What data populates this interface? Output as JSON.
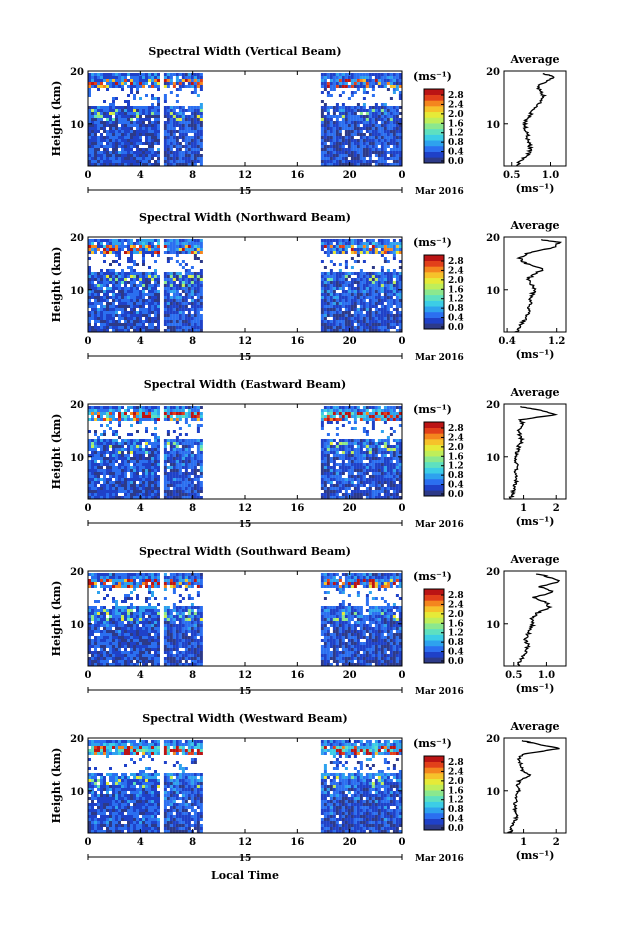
{
  "page": {
    "xlabel": "Local Time"
  },
  "colorbar": {
    "unit": "(ms⁻¹)",
    "ticks": [
      "2.8",
      "2.4",
      "2.0",
      "1.6",
      "1.2",
      "0.8",
      "0.4",
      "0.0"
    ],
    "range": [
      0.0,
      3.0
    ],
    "colors": [
      "#2d3a88",
      "#1f41c8",
      "#2b6ff0",
      "#2ea2ee",
      "#3ccde6",
      "#5ee0c0",
      "#8be88e",
      "#bfee5a",
      "#e6ea38",
      "#f6c22a",
      "#f4861e",
      "#e2401a",
      "#bb1414"
    ]
  },
  "chart_data": [
    {
      "type": "heatmap",
      "title": "Spectral Width (Vertical Beam)",
      "ylabel": "Height (km)",
      "xlim": [
        0,
        24
      ],
      "ylim": [
        2,
        20
      ],
      "xticks": [
        "0",
        "4",
        "8",
        "12",
        "16",
        "20",
        "0"
      ],
      "date_label": "15",
      "month_label": "Mar 2016",
      "data_intervals": [
        [
          0,
          5.4
        ],
        [
          5.8,
          8.6
        ],
        [
          17.8,
          24
        ]
      ],
      "profile": {
        "title": "Average",
        "xlabel": "(ms⁻¹)",
        "xticks": [
          "0.5",
          "1.0"
        ],
        "yticks": [
          "10",
          "20"
        ],
        "xlim": [
          0.4,
          1.2
        ],
        "ylim": [
          2,
          20
        ],
        "heights": [
          2,
          3,
          4,
          5,
          6,
          7,
          8,
          9,
          10,
          11,
          12,
          13,
          14,
          15,
          16,
          17,
          18,
          19,
          19.5
        ],
        "values": [
          0.55,
          0.62,
          0.7,
          0.74,
          0.73,
          0.71,
          0.7,
          0.68,
          0.67,
          0.7,
          0.75,
          0.8,
          0.86,
          0.92,
          0.88,
          0.82,
          0.95,
          1.05,
          0.9
        ]
      }
    },
    {
      "type": "heatmap",
      "title": "Spectral Width (Northward Beam)",
      "ylabel": "Height (km)",
      "xlim": [
        0,
        24
      ],
      "ylim": [
        2,
        20
      ],
      "xticks": [
        "0",
        "4",
        "8",
        "12",
        "16",
        "20",
        "0"
      ],
      "date_label": "15",
      "month_label": "Mar 2016",
      "data_intervals": [
        [
          0,
          5.4
        ],
        [
          5.8,
          8.6
        ],
        [
          17.8,
          24
        ]
      ],
      "profile": {
        "title": "Average",
        "xlabel": "(ms⁻¹)",
        "xticks": [
          "0.4",
          "1.2"
        ],
        "yticks": [
          "10",
          "20"
        ],
        "xlim": [
          0.35,
          1.35
        ],
        "ylim": [
          2,
          20
        ],
        "heights": [
          2,
          3,
          4,
          5,
          6,
          7,
          8,
          9,
          10,
          11,
          12,
          13,
          14,
          15,
          16,
          17,
          18,
          19,
          19.5
        ],
        "values": [
          0.55,
          0.6,
          0.66,
          0.72,
          0.74,
          0.76,
          0.78,
          0.8,
          0.84,
          0.8,
          0.72,
          0.85,
          1.0,
          0.7,
          0.6,
          0.75,
          1.15,
          1.25,
          0.95
        ]
      }
    },
    {
      "type": "heatmap",
      "title": "Spectral Width (Eastward Beam)",
      "ylabel": "Height (km)",
      "xlim": [
        0,
        24
      ],
      "ylim": [
        2,
        20
      ],
      "xticks": [
        "0",
        "4",
        "8",
        "12",
        "16",
        "20",
        "0"
      ],
      "date_label": "15",
      "month_label": "Mar 2016",
      "data_intervals": [
        [
          0,
          5.4
        ],
        [
          5.8,
          8.6
        ],
        [
          17.8,
          24
        ]
      ],
      "profile": {
        "title": "Average",
        "xlabel": "(ms⁻¹)",
        "xticks": [
          "1",
          "2"
        ],
        "yticks": [
          "10",
          "20"
        ],
        "xlim": [
          0.4,
          2.3
        ],
        "ylim": [
          2,
          20
        ],
        "heights": [
          2,
          3,
          4,
          5,
          6,
          7,
          8,
          9,
          10,
          11,
          12,
          13,
          14,
          15,
          16,
          17,
          18,
          19,
          19.5
        ],
        "values": [
          0.6,
          0.65,
          0.72,
          0.75,
          0.78,
          0.74,
          0.8,
          0.78,
          0.76,
          0.82,
          0.85,
          0.95,
          0.9,
          0.8,
          1.0,
          0.9,
          2.0,
          1.4,
          0.9
        ]
      }
    },
    {
      "type": "heatmap",
      "title": "Spectral Width (Southward Beam)",
      "ylabel": "Height (km)",
      "xlim": [
        0,
        24
      ],
      "ylim": [
        2,
        20
      ],
      "xticks": [
        "0",
        "4",
        "8",
        "12",
        "16",
        "20",
        "0"
      ],
      "date_label": "15",
      "month_label": "Mar 2016",
      "data_intervals": [
        [
          0,
          5.4
        ],
        [
          5.8,
          8.6
        ],
        [
          17.8,
          24
        ]
      ],
      "profile": {
        "title": "Average",
        "xlabel": "(ms⁻¹)",
        "xticks": [
          "0.5",
          "1.0"
        ],
        "yticks": [
          "10",
          "20"
        ],
        "xlim": [
          0.35,
          1.3
        ],
        "ylim": [
          2,
          20
        ],
        "heights": [
          2,
          3,
          4,
          5,
          6,
          7,
          8,
          9,
          10,
          11,
          12,
          13,
          14,
          15,
          16,
          17,
          18,
          19,
          19.5
        ],
        "values": [
          0.55,
          0.6,
          0.66,
          0.7,
          0.72,
          0.68,
          0.72,
          0.75,
          0.8,
          0.78,
          0.85,
          1.05,
          1.0,
          0.8,
          1.1,
          0.9,
          1.2,
          1.0,
          0.85
        ]
      }
    },
    {
      "type": "heatmap",
      "title": "Spectral Width (Westward Beam)",
      "ylabel": "Height (km)",
      "xlim": [
        0,
        24
      ],
      "ylim": [
        2,
        20
      ],
      "xticks": [
        "0",
        "4",
        "8",
        "12",
        "16",
        "20",
        "0"
      ],
      "date_label": "15",
      "month_label": "Mar 2016",
      "data_intervals": [
        [
          0,
          5.4
        ],
        [
          5.8,
          8.6
        ],
        [
          17.8,
          24
        ]
      ],
      "profile": {
        "title": "Average",
        "xlabel": "(ms⁻¹)",
        "xticks": [
          "1",
          "2"
        ],
        "yticks": [
          "10",
          "20"
        ],
        "xlim": [
          0.4,
          2.3
        ],
        "ylim": [
          2,
          20
        ],
        "heights": [
          2,
          3,
          4,
          5,
          6,
          7,
          8,
          9,
          10,
          11,
          12,
          13,
          14,
          15,
          16,
          17,
          18,
          19,
          19.5
        ],
        "values": [
          0.6,
          0.65,
          0.72,
          0.78,
          0.75,
          0.72,
          0.78,
          0.8,
          0.85,
          0.8,
          0.88,
          1.2,
          0.95,
          0.9,
          0.85,
          1.0,
          2.1,
          1.3,
          0.95
        ]
      }
    }
  ]
}
